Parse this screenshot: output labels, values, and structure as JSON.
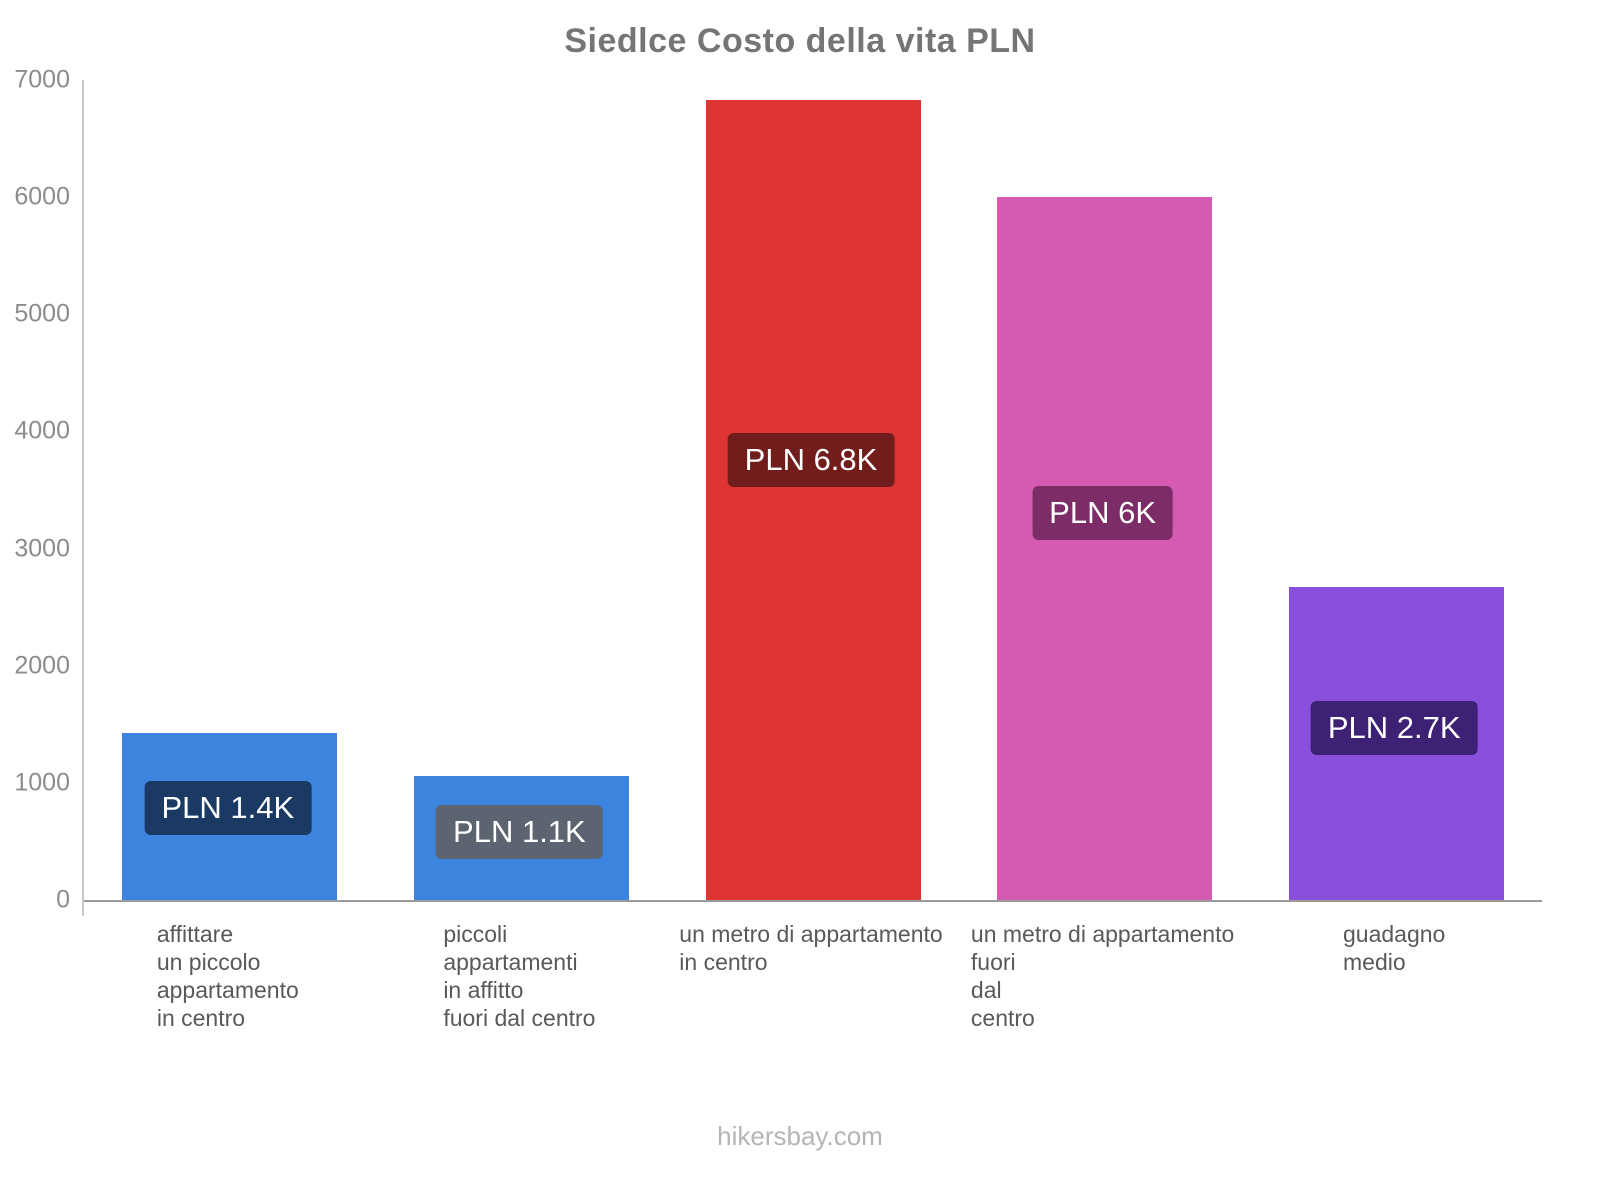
{
  "title": "Siedlce Costo della vita PLN",
  "footer": "hikersbay.com",
  "chart_data": {
    "type": "bar",
    "title": "Siedlce Costo della vita PLN",
    "xlabel": "",
    "ylabel": "",
    "ylim": [
      0,
      7000
    ],
    "yticks": [
      0,
      1000,
      2000,
      3000,
      4000,
      5000,
      6000,
      7000
    ],
    "grid": false,
    "legend": false,
    "categories": [
      "affittare un piccolo appartamento in centro",
      "piccoli appartamenti in affitto fuori dal centro",
      "un metro di appartamento in centro",
      "un metro di appartamento fuori dal centro",
      "guadagno medio"
    ],
    "category_lines": [
      [
        "affittare",
        "un piccolo",
        "appartamento",
        "in centro"
      ],
      [
        "piccoli",
        "appartamenti",
        "in affitto",
        "fuori dal centro"
      ],
      [
        "un metro di appartamento",
        "in centro"
      ],
      [
        "un metro di appartamento",
        "fuori",
        "dal",
        "centro"
      ],
      [
        "guadagno",
        "medio"
      ]
    ],
    "values": [
      1425,
      1060,
      6830,
      6000,
      2670
    ],
    "value_labels": [
      "PLN 1.4K",
      "PLN 1.1K",
      "PLN 6.8K",
      "PLN 6K",
      "PLN 2.7K"
    ],
    "bar_colors": [
      "#3c84dd",
      "#3c84dd",
      "#e03434",
      "#d55ab2",
      "#8a4fdb"
    ],
    "value_label_bg_colors": [
      "#1a3a64",
      "#5b6470",
      "#701d1b",
      "#7c2c67",
      "#3d2175"
    ]
  }
}
